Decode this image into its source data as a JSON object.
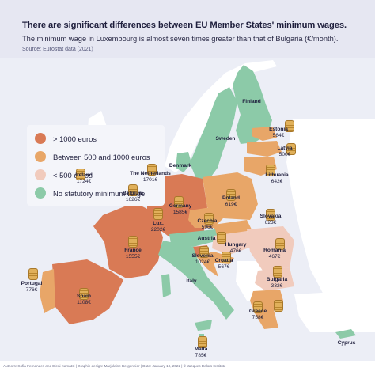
{
  "header": {
    "title": "There are significant differences between EU Member States' minimum wages.",
    "subtitle": "The minimum wage in Luxembourg is almost seven times greater than that of Bulgaria (€/month).",
    "source": "Source: Eurostat data (2021)"
  },
  "legend": [
    {
      "label": "> 1000 euros",
      "color": "#d97a55"
    },
    {
      "label": "Between 500 and 1000 euros",
      "color": "#e8a668"
    },
    {
      "label": "< 500 euros",
      "color": "#f1cbbd"
    },
    {
      "label": "No statutory minimum wage",
      "color": "#8ccaa8"
    }
  ],
  "countries": [
    {
      "name": "Finland",
      "value": ""
    },
    {
      "name": "Sweden",
      "value": ""
    },
    {
      "name": "Estonia",
      "value": "584€"
    },
    {
      "name": "Latvia",
      "value": "500€"
    },
    {
      "name": "Lithuania",
      "value": "642€"
    },
    {
      "name": "Denmark",
      "value": ""
    },
    {
      "name": "Ireland",
      "value": "1724€"
    },
    {
      "name": "The Netherlands",
      "value": "1701€"
    },
    {
      "name": "Belgium",
      "value": "1626€"
    },
    {
      "name": "Germany",
      "value": "1585€"
    },
    {
      "name": "Poland",
      "value": "619€"
    },
    {
      "name": "Lux.",
      "value": "2202€"
    },
    {
      "name": "Czechia",
      "value": "596€"
    },
    {
      "name": "Slovakia",
      "value": "623€"
    },
    {
      "name": "Austria",
      "value": ""
    },
    {
      "name": "Hungary",
      "value": "476€"
    },
    {
      "name": "France",
      "value": "1555€"
    },
    {
      "name": "Slovenia",
      "value": "1024€"
    },
    {
      "name": "Croatia",
      "value": "567€"
    },
    {
      "name": "Romania",
      "value": "467€"
    },
    {
      "name": "Portugal",
      "value": "776€"
    },
    {
      "name": "Spain",
      "value": "1108€"
    },
    {
      "name": "Italy",
      "value": ""
    },
    {
      "name": "Bulgaria",
      "value": "332€"
    },
    {
      "name": "Greece",
      "value": "758€"
    },
    {
      "name": "Malta",
      "value": "785€"
    },
    {
      "name": "Cyprus",
      "value": ""
    }
  ],
  "footer": {
    "credits": "Authors: Sofia Fernandes and Eleni Kamatsi | Graphic design: Marjolaine Bergonnier | Date: January 19, 2022 | © Jacques Delors Institute"
  }
}
